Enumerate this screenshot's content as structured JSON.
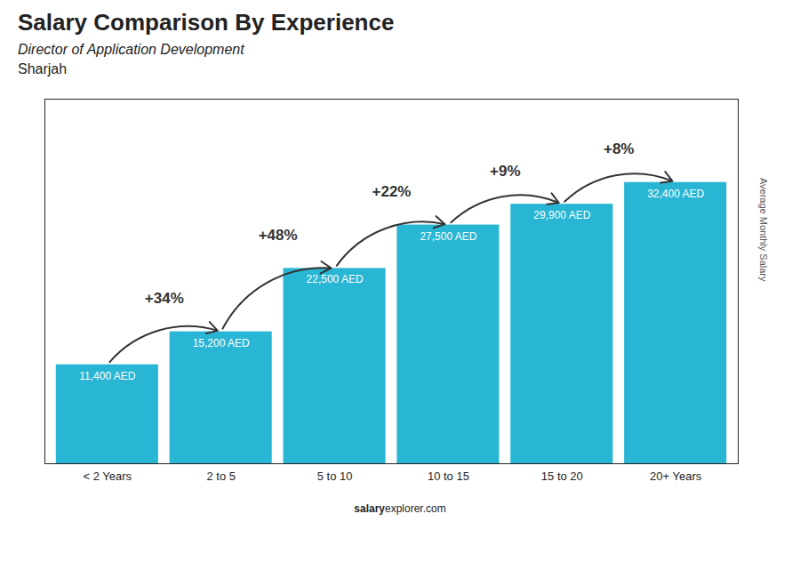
{
  "chart_data": {
    "type": "bar",
    "title": "Salary Comparison By Experience",
    "subtitle": [
      "Director of Application Development",
      "Sharjah"
    ],
    "ylabel": "Average Monthly Salary",
    "categories": [
      "< 2 Years",
      "2 to 5",
      "5 to 10",
      "10 to 15",
      "15 to 20",
      "20+ Years"
    ],
    "values": [
      11400,
      15200,
      22500,
      27500,
      29900,
      32400
    ],
    "value_labels": [
      "11,400 AED",
      "15,200 AED",
      "22,500 AED",
      "27,500 AED",
      "29,900 AED",
      "32,400 AED"
    ],
    "data_labels": true,
    "color": "#29b6d4",
    "ylim": [
      0,
      42000
    ],
    "tick_labels": "x",
    "grid": false,
    "annotations": [
      {
        "text": "+34%",
        "from": "< 2 Years",
        "to": "2 to 5"
      },
      {
        "text": "+48%",
        "from": "2 to 5",
        "to": "5 to 10"
      },
      {
        "text": "+22%",
        "from": "5 to 10",
        "to": "10 to 15"
      },
      {
        "text": "+9%",
        "from": "10 to 15",
        "to": "15 to 20"
      },
      {
        "text": "+8%",
        "from": "15 to 20",
        "to": "20+ Years"
      }
    ],
    "caption": [
      "salary",
      "explorer.com"
    ]
  }
}
